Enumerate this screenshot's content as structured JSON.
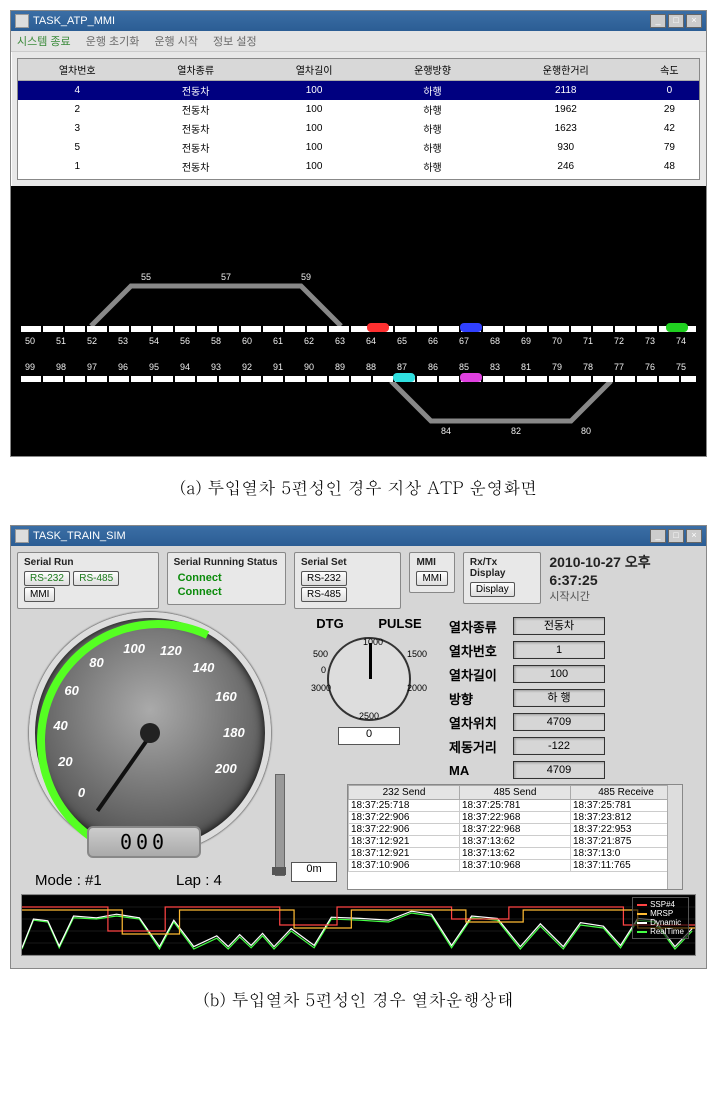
{
  "panelA": {
    "window_title": "TASK_ATP_MMI",
    "menu": [
      "시스템 종료",
      "운행 초기화",
      "운행 시작",
      "정보 설정"
    ],
    "table": {
      "columns": [
        "열차번호",
        "열차종류",
        "열차길이",
        "운행방향",
        "운행한거리",
        "속도"
      ],
      "rows": [
        {
          "sel": true,
          "c": [
            "4",
            "전동차",
            "100",
            "하행",
            "2118",
            "0"
          ]
        },
        {
          "sel": false,
          "c": [
            "2",
            "전동차",
            "100",
            "하행",
            "1962",
            "29"
          ]
        },
        {
          "sel": false,
          "c": [
            "3",
            "전동차",
            "100",
            "하행",
            "1623",
            "42"
          ]
        },
        {
          "sel": false,
          "c": [
            "5",
            "전동차",
            "100",
            "하행",
            "930",
            "79"
          ]
        },
        {
          "sel": false,
          "c": [
            "1",
            "전동차",
            "100",
            "하행",
            "246",
            "48"
          ]
        }
      ]
    },
    "upper_siding": [
      "55",
      "57",
      "59"
    ],
    "track1_labels": [
      "50",
      "51",
      "52",
      "53",
      "54",
      "56",
      "58",
      "60",
      "61",
      "62",
      "63",
      "64",
      "65",
      "66",
      "67",
      "68",
      "69",
      "70",
      "71",
      "72",
      "73",
      "74"
    ],
    "track2_labels": [
      "99",
      "98",
      "97",
      "96",
      "95",
      "94",
      "93",
      "92",
      "91",
      "90",
      "89",
      "88",
      "87",
      "86",
      "85",
      "83",
      "81",
      "79",
      "78",
      "77",
      "76",
      "75"
    ],
    "lower_siding": [
      "84",
      "82",
      "80"
    ],
    "train_marks": [
      {
        "color": "#ff3030",
        "line": 1,
        "pct": 52
      },
      {
        "color": "#3040ff",
        "line": 1,
        "pct": 66
      },
      {
        "color": "#20d020",
        "line": 1,
        "pct": 97
      },
      {
        "color": "#30e0e0",
        "line": 2,
        "pct": 56
      },
      {
        "color": "#e040e0",
        "line": 2,
        "pct": 66
      }
    ]
  },
  "captionA": "(a) 투입열차 5편성인 경우 지상 ATP 운영화면",
  "panelB": {
    "window_title": "TASK_TRAIN_SIM",
    "groups": {
      "serial_run": {
        "label": "Serial Run",
        "btns": [
          "RS-232",
          "RS-485",
          "MMI"
        ]
      },
      "serial_status": {
        "label": "Serial Running Status",
        "vals": [
          "Connect",
          "Connect"
        ]
      },
      "serial_set": {
        "label": "Serial Set",
        "btns": [
          "RS-232",
          "RS-485"
        ]
      },
      "mmi": {
        "label": "MMI",
        "btns": [
          "MMI"
        ]
      },
      "rxtx": {
        "label": "Rx/Tx Display",
        "btns": [
          "Display"
        ]
      }
    },
    "datetime": "2010-10-27 오후 6:37:25",
    "starttime_label": "시작시간",
    "gauge": {
      "ticks": [
        "20",
        "40",
        "60",
        "80",
        "100",
        "120",
        "140",
        "160",
        "180",
        "200",
        "0"
      ],
      "digital": "000"
    },
    "mode_label": "Mode : #1",
    "lap_label": "Lap : 4",
    "dtg_label": "DTG",
    "pulse_label": "PULSE",
    "pulse_ticks": [
      "500",
      "1000",
      "1500",
      "2000",
      "2500",
      "3000",
      "0"
    ],
    "pulse_value": "0",
    "zeroM": "0m",
    "kv": [
      {
        "k": "열차종류",
        "v": "전동차"
      },
      {
        "k": "열차번호",
        "v": "1"
      },
      {
        "k": "열차길이",
        "v": "100"
      },
      {
        "k": "방향",
        "v": "하 행"
      },
      {
        "k": "열차위치",
        "v": "4709"
      },
      {
        "k": "제동거리",
        "v": "-122"
      },
      {
        "k": "MA",
        "v": "4709"
      }
    ],
    "log": {
      "columns": [
        "232 Send",
        "485 Send",
        "485 Receive"
      ],
      "rows": [
        [
          "18:37:25:718",
          "18:37:25:781",
          "18:37:25:781"
        ],
        [
          "18:37:22:906",
          "18:37:22:968",
          "18:37:23:812"
        ],
        [
          "18:37:22:906",
          "18:37:22:968",
          "18:37:22:953"
        ],
        [
          "18:37:12:921",
          "18:37:13:62",
          "18:37:21:875"
        ],
        [
          "18:37:12:921",
          "18:37:13:62",
          "18:37:13:0"
        ],
        [
          "18:37:10:906",
          "18:37:10:968",
          "18:37:11:765"
        ]
      ]
    },
    "chart": {
      "xmax": 4700,
      "ymax": 100,
      "xtick": 500,
      "ytick": 20,
      "legend": [
        {
          "name": "SSP#4",
          "color": "#ff4444"
        },
        {
          "name": "MRSP",
          "color": "#ffbb33"
        },
        {
          "name": "Dynamic",
          "color": "#ffffff"
        },
        {
          "name": "RealTime",
          "color": "#44ff44"
        }
      ],
      "series": [
        {
          "color": "#44ff44",
          "pts": [
            [
              0,
              10
            ],
            [
              80,
              58
            ],
            [
              180,
              55
            ],
            [
              260,
              12
            ],
            [
              360,
              62
            ],
            [
              520,
              60
            ],
            [
              660,
              65
            ],
            [
              820,
              60
            ],
            [
              960,
              10
            ],
            [
              1060,
              55
            ],
            [
              1200,
              10
            ],
            [
              1360,
              28
            ],
            [
              1440,
              10
            ],
            [
              1520,
              30
            ],
            [
              1600,
              12
            ],
            [
              1680,
              32
            ],
            [
              1760,
              10
            ],
            [
              1880,
              40
            ],
            [
              2040,
              12
            ],
            [
              2160,
              60
            ],
            [
              2360,
              58
            ],
            [
              2560,
              55
            ],
            [
              2720,
              70
            ],
            [
              2860,
              65
            ],
            [
              3000,
              12
            ],
            [
              3140,
              62
            ],
            [
              3320,
              58
            ],
            [
              3480,
              10
            ],
            [
              3620,
              48
            ],
            [
              3780,
              10
            ],
            [
              3900,
              50
            ],
            [
              4060,
              45
            ],
            [
              4180,
              12
            ],
            [
              4300,
              58
            ],
            [
              4420,
              55
            ],
            [
              4560,
              10
            ],
            [
              4680,
              40
            ]
          ]
        },
        {
          "color": "#ffffff",
          "pts": [
            [
              0,
              12
            ],
            [
              80,
              60
            ],
            [
              180,
              57
            ],
            [
              260,
              15
            ],
            [
              360,
              65
            ],
            [
              520,
              62
            ],
            [
              660,
              68
            ],
            [
              820,
              62
            ],
            [
              960,
              14
            ],
            [
              1060,
              58
            ],
            [
              1200,
              14
            ],
            [
              1360,
              32
            ],
            [
              1440,
              14
            ],
            [
              1520,
              34
            ],
            [
              1600,
              16
            ],
            [
              1680,
              36
            ],
            [
              1760,
              14
            ],
            [
              1880,
              44
            ],
            [
              2040,
              16
            ],
            [
              2160,
              63
            ],
            [
              2360,
              61
            ],
            [
              2560,
              58
            ],
            [
              2720,
              73
            ],
            [
              2860,
              68
            ],
            [
              3000,
              16
            ],
            [
              3140,
              65
            ],
            [
              3320,
              61
            ],
            [
              3480,
              14
            ],
            [
              3620,
              52
            ],
            [
              3780,
              14
            ],
            [
              3900,
              54
            ],
            [
              4060,
              48
            ],
            [
              4180,
              16
            ],
            [
              4300,
              61
            ],
            [
              4420,
              58
            ],
            [
              4560,
              14
            ],
            [
              4680,
              44
            ]
          ]
        },
        {
          "color": "#ff4444",
          "pts": [
            [
              0,
              80
            ],
            [
              600,
              80
            ],
            [
              600,
              40
            ],
            [
              1000,
              40
            ],
            [
              1000,
              80
            ],
            [
              1800,
              80
            ],
            [
              1800,
              50
            ],
            [
              2200,
              50
            ],
            [
              2200,
              80
            ],
            [
              3000,
              80
            ],
            [
              3000,
              60
            ],
            [
              3400,
              60
            ],
            [
              3400,
              80
            ],
            [
              4200,
              80
            ],
            [
              4200,
              50
            ],
            [
              4700,
              50
            ]
          ]
        },
        {
          "color": "#ffbb33",
          "pts": [
            [
              0,
              75
            ],
            [
              700,
              75
            ],
            [
              700,
              35
            ],
            [
              1100,
              35
            ],
            [
              1100,
              75
            ],
            [
              1900,
              75
            ],
            [
              1900,
              45
            ],
            [
              2300,
              45
            ],
            [
              2300,
              75
            ],
            [
              3100,
              75
            ],
            [
              3100,
              55
            ],
            [
              3500,
              55
            ],
            [
              3500,
              75
            ],
            [
              4300,
              75
            ],
            [
              4300,
              45
            ],
            [
              4700,
              45
            ]
          ]
        }
      ]
    }
  },
  "captionB": "(b) 투입열차 5편성인 경우 열차운행상태"
}
